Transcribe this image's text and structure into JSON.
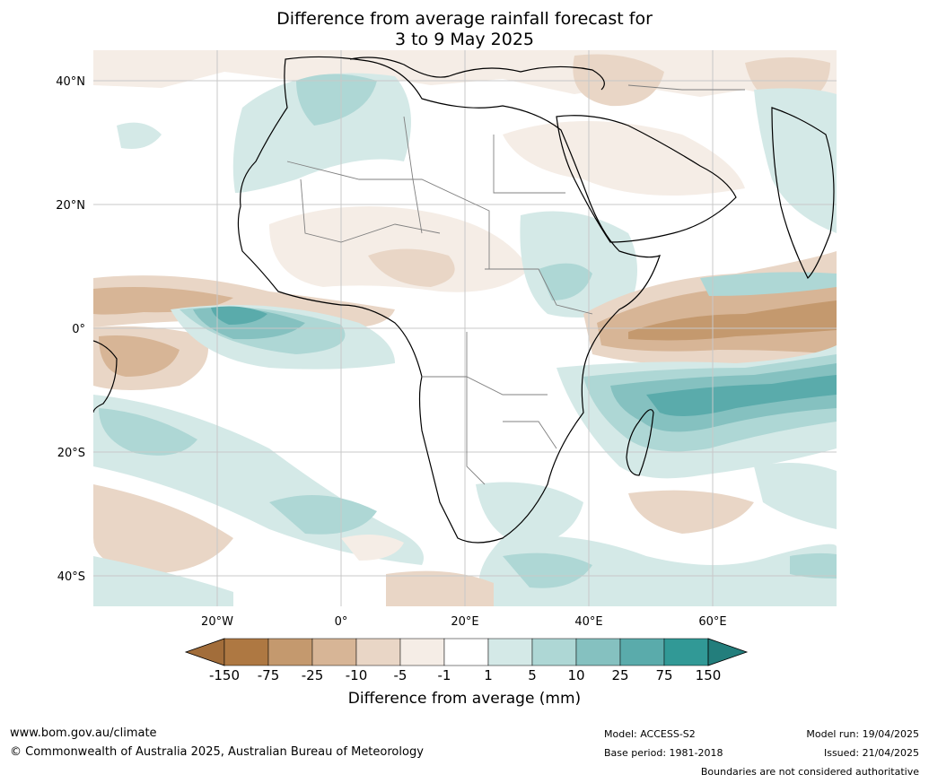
{
  "title": {
    "line1": "Difference from average rainfall forecast for",
    "line2": "3 to 9 May 2025"
  },
  "axes": {
    "lat_ticks": [
      "40°N",
      "20°N",
      "0°",
      "20°S",
      "40°S"
    ],
    "lon_ticks": [
      "20°W",
      "0°",
      "20°E",
      "40°E",
      "60°E"
    ]
  },
  "colorbar": {
    "title": "Difference from average (mm)",
    "labels": [
      "-150",
      "-75",
      "-25",
      "-10",
      "-5",
      "-1",
      "1",
      "5",
      "10",
      "25",
      "75",
      "150"
    ],
    "colors": [
      "#a26d3a",
      "#ae7842",
      "#c4996e",
      "#d7b596",
      "#e9d6c6",
      "#f5ede6",
      "#ffffff",
      "#d4e9e7",
      "#aed7d5",
      "#85c1c0",
      "#5aabab",
      "#319996",
      "#237e7c"
    ]
  },
  "footer": {
    "url": "www.bom.gov.au/climate",
    "copyright": "© Commonwealth of Australia 2025, Australian Bureau of Meteorology",
    "model": "Model: ACCESS-S2",
    "base_period": "Base period: 1981-2018",
    "model_run": "Model run: 19/04/2025",
    "issued": "Issued: 21/04/2025",
    "disclaimer": "Boundaries are not considered authoritative"
  }
}
